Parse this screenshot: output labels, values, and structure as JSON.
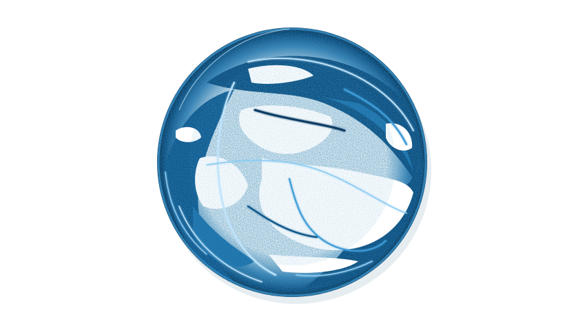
{
  "image": {
    "subject_icon": "blue-energy-sphere",
    "background_color": "#ffffff",
    "colors": {
      "deep_blue": "#0a4a7a",
      "mid_blue": "#1a6fa8",
      "bright_blue": "#3d9bd6",
      "highlight": "#bfe4fb",
      "dark_edge": "#062a47"
    }
  }
}
